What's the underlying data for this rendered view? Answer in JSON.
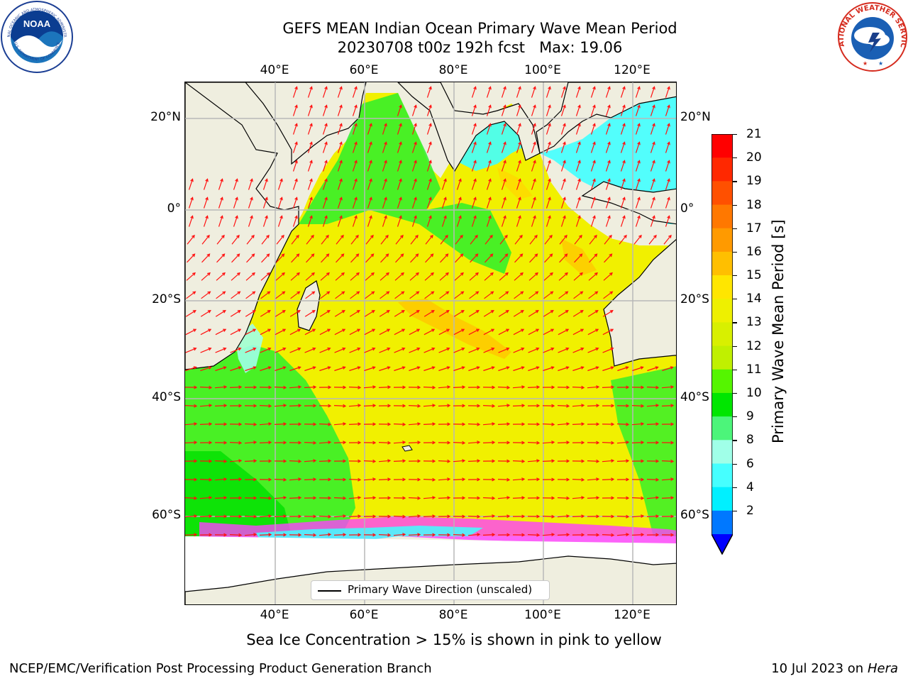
{
  "header": {
    "title_line1": "GEFS MEAN Indian Ocean Primary Wave Mean Period",
    "title_line2": "20230708 t00z 192h fcst   Max: 19.06"
  },
  "logos": {
    "left": "NOAA",
    "left_ring": "NATIONAL OCEANIC AND ATMOSPHERIC ADMINISTRATION",
    "left_ring_bottom": "U.S. DEPARTMENT OF COMMERCE",
    "right_ring": "NATIONAL WEATHER SERVICE"
  },
  "map": {
    "lon_ticks": [
      "40°E",
      "60°E",
      "80°E",
      "100°E",
      "120°E"
    ],
    "lat_ticks": [
      "20°N",
      "0°",
      "20°S",
      "40°S",
      "60°S"
    ],
    "legend_label": "Primary Wave Direction (unscaled)"
  },
  "colorbar": {
    "label": "Primary Wave Mean Period [s]",
    "ticks": [
      "21",
      "20",
      "19",
      "18",
      "17",
      "16",
      "15",
      "14",
      "13",
      "12",
      "11",
      "10",
      "9",
      "8",
      "6",
      "4",
      "2"
    ],
    "colors": [
      "#ff0000",
      "#ff2800",
      "#ff5000",
      "#ff7800",
      "#ff9a00",
      "#ffbf00",
      "#ffe600",
      "#eef000",
      "#d8f000",
      "#c0f000",
      "#55f500",
      "#00e600",
      "#4cf57a",
      "#a0ffe8",
      "#46ffff",
      "#00f0ff",
      "#0078ff"
    ],
    "extend_color": "#0000ff"
  },
  "caption": "Sea Ice Concentration > 15% is shown in pink to yellow",
  "footer": {
    "left": "NCEP/EMC/Verification Post Processing Product Generation Branch",
    "right_date": "10 Jul 2023 on ",
    "right_host": "Hera"
  },
  "colors": {
    "arrow": "#ff1010",
    "land": "#efeedf",
    "grid": "#b8b8b8"
  }
}
